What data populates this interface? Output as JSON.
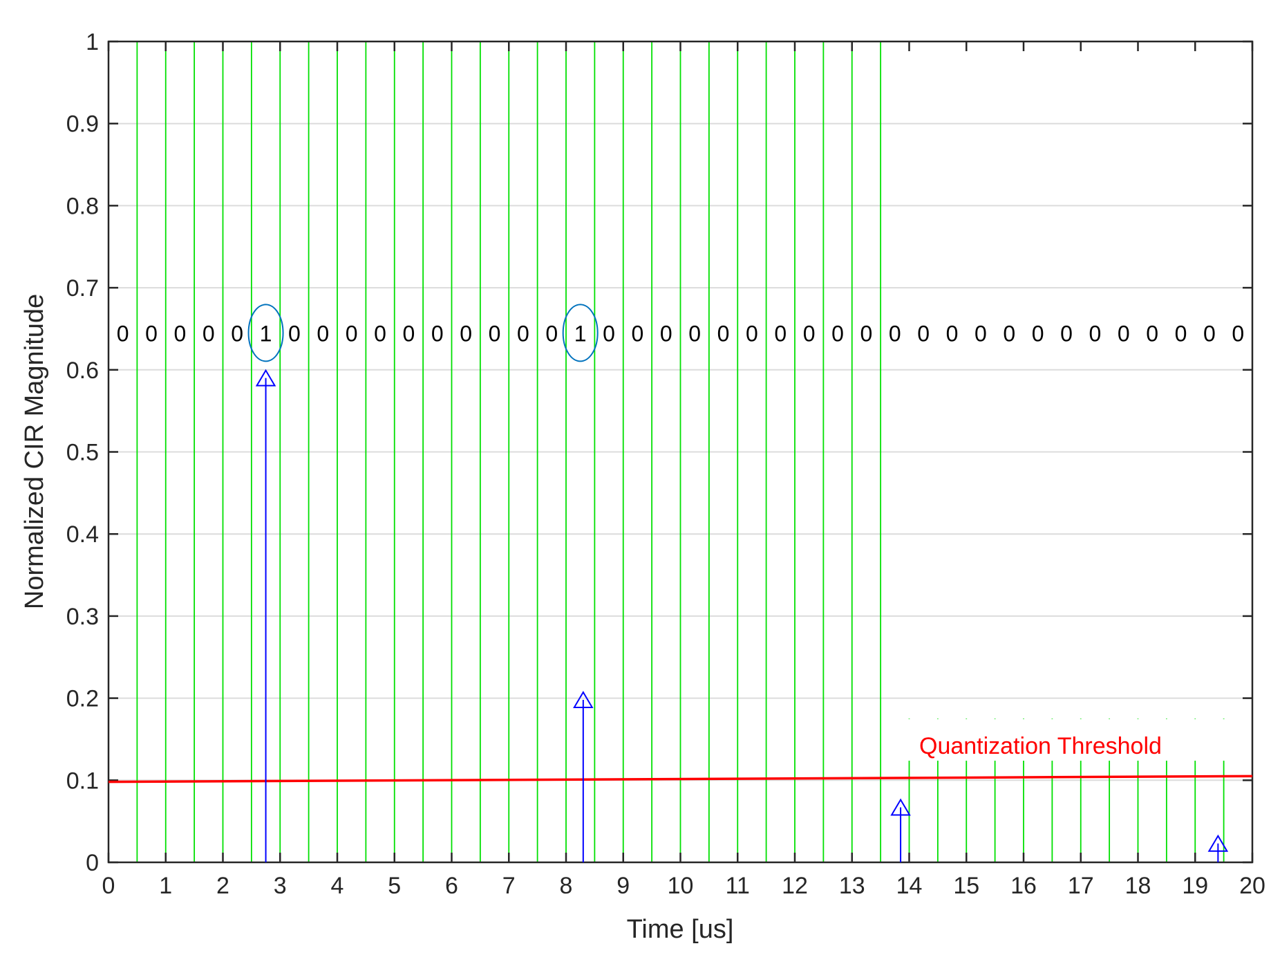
{
  "chart_data": {
    "type": "stem",
    "xlabel": "Time [us]",
    "ylabel": "Normalized CIR Magnitude",
    "xlim": [
      0,
      20
    ],
    "ylim": [
      0,
      1
    ],
    "xticks": [
      0,
      1,
      2,
      3,
      4,
      5,
      6,
      7,
      8,
      9,
      10,
      11,
      12,
      13,
      14,
      15,
      16,
      17,
      18,
      19,
      20
    ],
    "xtick_labels": [
      "0",
      "1",
      "2",
      "3",
      "4",
      "5",
      "6",
      "7",
      "8",
      "9",
      "10",
      "11",
      "12",
      "13",
      "14",
      "15",
      "16",
      "17",
      "18",
      "19",
      "20"
    ],
    "yticks": [
      0,
      0.1,
      0.2,
      0.3,
      0.4,
      0.5,
      0.6,
      0.7,
      0.8,
      0.9,
      1
    ],
    "ytick_labels": [
      "0",
      "0.1",
      "0.2",
      "0.3",
      "0.4",
      "0.5",
      "0.6",
      "0.7",
      "0.8",
      "0.9",
      "1"
    ],
    "grid": true,
    "stems": {
      "x": [
        2.75,
        8.3,
        13.85,
        19.4
      ],
      "y": [
        0.59,
        0.198,
        0.067,
        0.023
      ],
      "color": "#0000ff",
      "marker": "triangle-up"
    },
    "bin_boundaries": [
      0.5,
      1,
      1.5,
      2,
      2.5,
      3,
      3.5,
      4,
      4.5,
      5,
      5.5,
      6,
      6.5,
      7,
      7.5,
      8,
      8.5,
      9,
      9.5,
      10,
      10.5,
      11,
      11.5,
      12,
      12.5,
      13,
      13.5,
      14,
      14.5,
      15,
      15.5,
      16,
      16.5,
      17,
      17.5,
      18,
      18.5,
      19,
      19.5
    ],
    "bin_boundary_color": "#00e000",
    "bits": [
      "0",
      "0",
      "0",
      "0",
      "0",
      "1",
      "0",
      "0",
      "0",
      "0",
      "0",
      "0",
      "0",
      "0",
      "0",
      "0",
      "1",
      "0",
      "0",
      "0",
      "0",
      "0",
      "0",
      "0",
      "0",
      "0",
      "0",
      "0",
      "0",
      "0",
      "0",
      "0",
      "0",
      "0",
      "0",
      "0",
      "0",
      "0",
      "0",
      "0"
    ],
    "bit_row_y": 0.645,
    "highlighted_bits": [
      5,
      16
    ],
    "highlight_color": "#0072bd",
    "threshold": {
      "label": "Quantization Threshold",
      "x": [
        0,
        20
      ],
      "y": [
        0.098,
        0.105
      ],
      "color": "#ff0000"
    }
  }
}
